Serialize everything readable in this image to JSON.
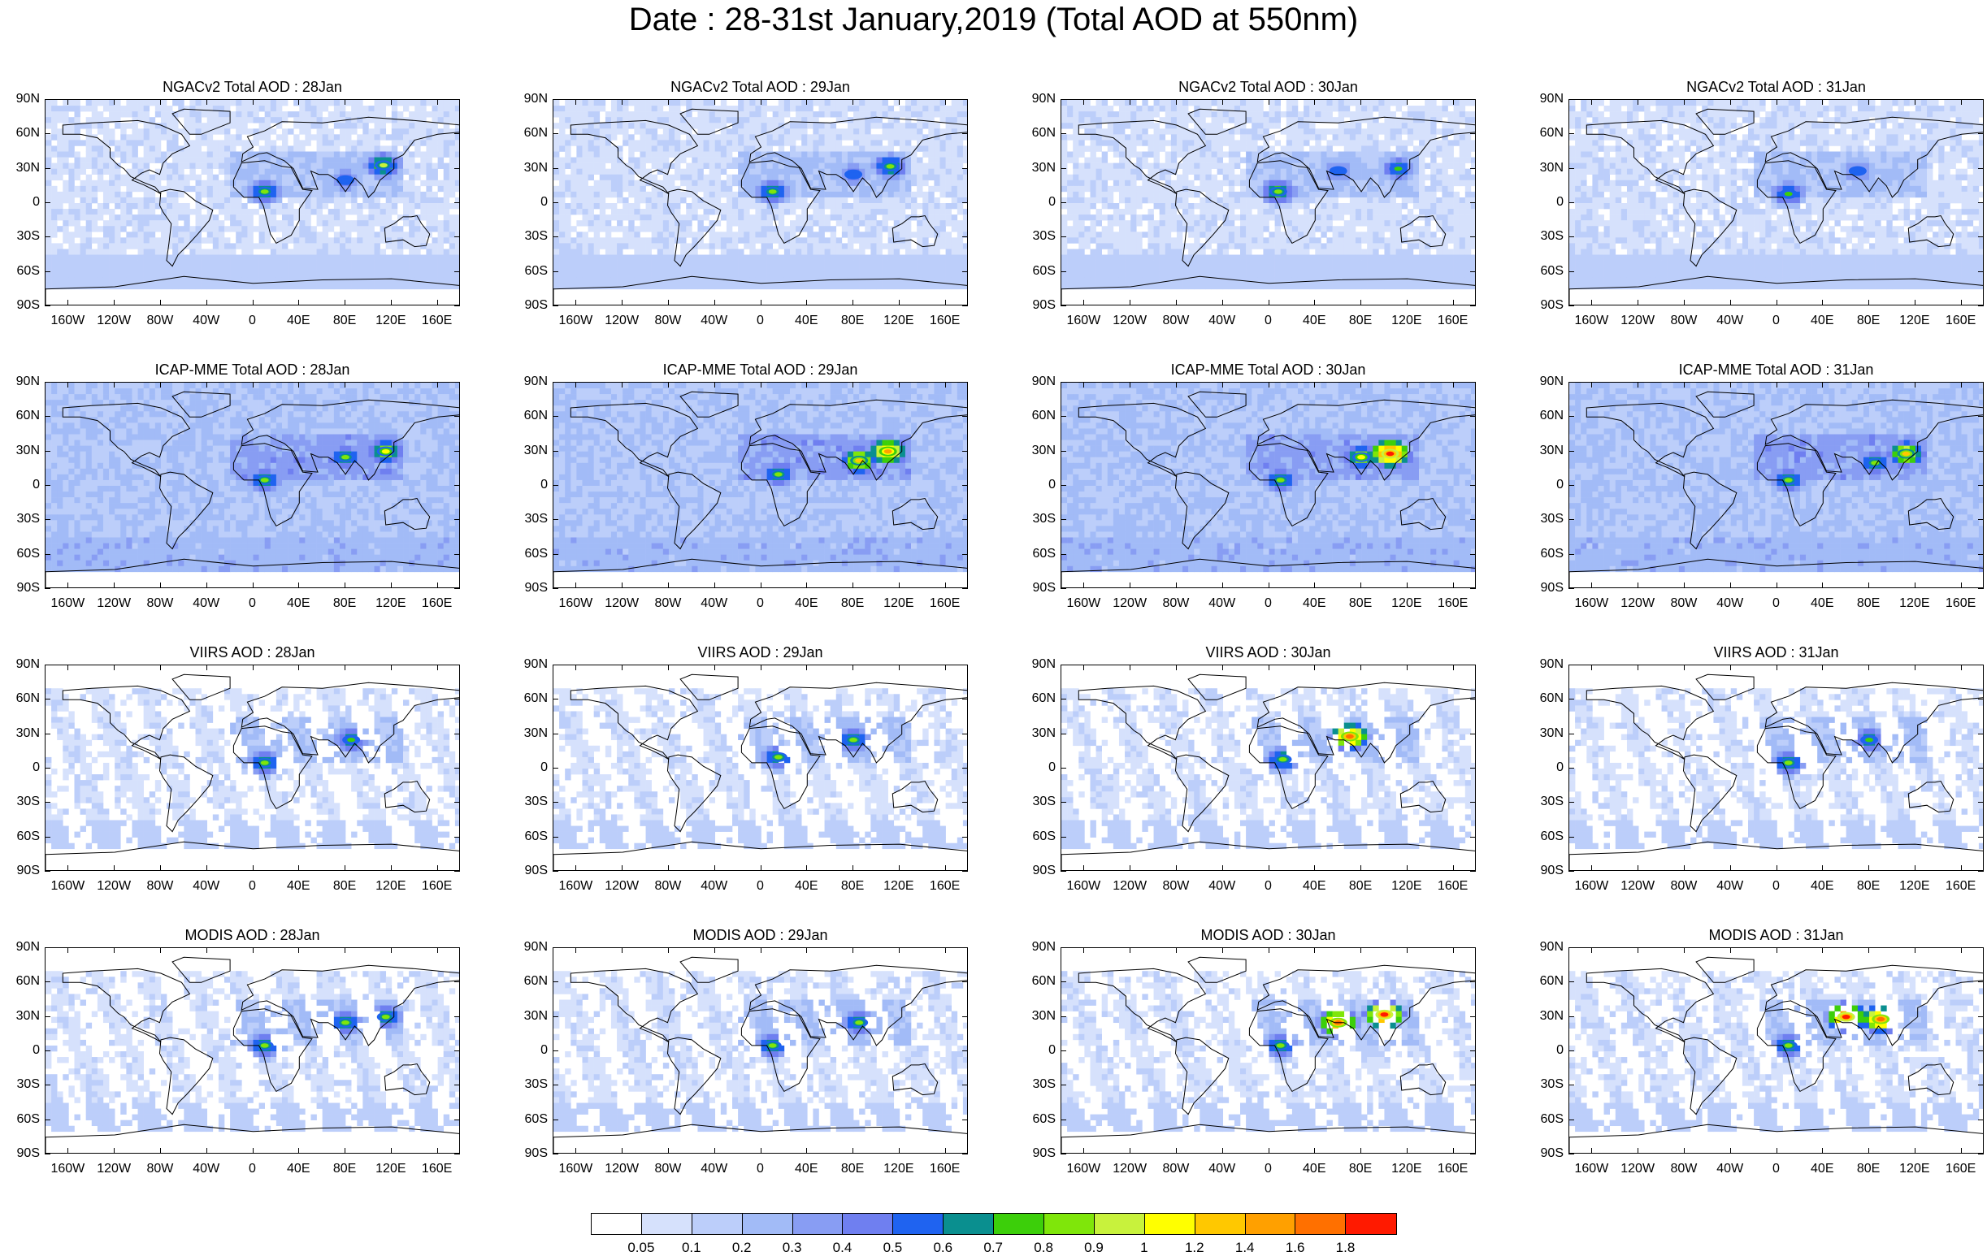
{
  "title": "Date : 28-31st January,2019 (Total AOD at 550nm)",
  "chart_data": {
    "type": "heatmap",
    "title": "Date : 28-31st January,2019 (Total AOD at 550nm)",
    "layout": "4 rows x 4 columns of global map panels",
    "lat_ticks": [
      "90N",
      "60N",
      "30N",
      "0",
      "30S",
      "60S",
      "90S"
    ],
    "lon_ticks": [
      "160W",
      "120W",
      "80W",
      "40W",
      "0",
      "40E",
      "80E",
      "120E",
      "160E"
    ],
    "lat_range": [
      -90,
      90
    ],
    "lon_range": [
      -180,
      180
    ],
    "panels": [
      {
        "title": "NGACv2 Total AOD : 28Jan",
        "product": "NGACv2",
        "date": "28Jan",
        "kind": "model",
        "hotspots": [
          {
            "lat": 10,
            "lon": 10,
            "v": 0.8
          },
          {
            "lat": 33,
            "lon": 113,
            "v": 0.9
          },
          {
            "lat": 20,
            "lon": 80,
            "v": 0.5
          }
        ]
      },
      {
        "title": "NGACv2 Total AOD : 29Jan",
        "product": "NGACv2",
        "date": "29Jan",
        "kind": "model",
        "hotspots": [
          {
            "lat": 10,
            "lon": 10,
            "v": 0.8
          },
          {
            "lat": 32,
            "lon": 112,
            "v": 0.8
          },
          {
            "lat": 25,
            "lon": 80,
            "v": 0.5
          }
        ]
      },
      {
        "title": "NGACv2 Total AOD : 30Jan",
        "product": "NGACv2",
        "date": "30Jan",
        "kind": "model",
        "hotspots": [
          {
            "lat": 10,
            "lon": 8,
            "v": 0.8
          },
          {
            "lat": 30,
            "lon": 112,
            "v": 0.7
          },
          {
            "lat": 28,
            "lon": 60,
            "v": 0.5
          }
        ]
      },
      {
        "title": "NGACv2 Total AOD : 31Jan",
        "product": "NGACv2",
        "date": "31Jan",
        "kind": "model",
        "hotspots": [
          {
            "lat": 8,
            "lon": 10,
            "v": 0.7
          },
          {
            "lat": 28,
            "lon": 70,
            "v": 0.5
          }
        ]
      },
      {
        "title": "ICAP-MME Total AOD : 28Jan",
        "product": "ICAP-MME",
        "date": "28Jan",
        "kind": "model",
        "hotspots": [
          {
            "lat": 5,
            "lon": 10,
            "v": 0.8
          },
          {
            "lat": 30,
            "lon": 115,
            "v": 1.0
          },
          {
            "lat": 25,
            "lon": 80,
            "v": 0.8
          }
        ]
      },
      {
        "title": "ICAP-MME Total AOD : 29Jan",
        "product": "ICAP-MME",
        "date": "29Jan",
        "kind": "model",
        "hotspots": [
          {
            "lat": 30,
            "lon": 110,
            "v": 1.4
          },
          {
            "lat": 22,
            "lon": 85,
            "v": 1.2
          },
          {
            "lat": 10,
            "lon": 15,
            "v": 0.8
          }
        ]
      },
      {
        "title": "ICAP-MME Total AOD : 30Jan",
        "product": "ICAP-MME",
        "date": "30Jan",
        "kind": "model",
        "hotspots": [
          {
            "lat": 28,
            "lon": 105,
            "v": 1.8
          },
          {
            "lat": 25,
            "lon": 80,
            "v": 1.0
          },
          {
            "lat": 5,
            "lon": 10,
            "v": 0.8
          }
        ]
      },
      {
        "title": "ICAP-MME Total AOD : 31Jan",
        "product": "ICAP-MME",
        "date": "31Jan",
        "kind": "model",
        "hotspots": [
          {
            "lat": 28,
            "lon": 112,
            "v": 1.2
          },
          {
            "lat": 5,
            "lon": 10,
            "v": 0.8
          },
          {
            "lat": 20,
            "lon": 85,
            "v": 0.8
          }
        ]
      },
      {
        "title": "VIIRS AOD : 28Jan",
        "product": "VIIRS",
        "date": "28Jan",
        "kind": "satellite",
        "hotspots": [
          {
            "lat": 5,
            "lon": 10,
            "v": 0.8
          },
          {
            "lat": 25,
            "lon": 85,
            "v": 0.7
          }
        ]
      },
      {
        "title": "VIIRS AOD : 29Jan",
        "product": "VIIRS",
        "date": "29Jan",
        "kind": "satellite",
        "hotspots": [
          {
            "lat": 10,
            "lon": 15,
            "v": 0.8
          },
          {
            "lat": 25,
            "lon": 80,
            "v": 0.8
          }
        ]
      },
      {
        "title": "VIIRS AOD : 30Jan",
        "product": "VIIRS",
        "date": "30Jan",
        "kind": "satellite",
        "hotspots": [
          {
            "lat": 28,
            "lon": 70,
            "v": 1.6
          },
          {
            "lat": 8,
            "lon": 12,
            "v": 0.8
          }
        ]
      },
      {
        "title": "VIIRS AOD : 31Jan",
        "product": "VIIRS",
        "date": "31Jan",
        "kind": "satellite",
        "hotspots": [
          {
            "lat": 5,
            "lon": 10,
            "v": 0.8
          },
          {
            "lat": 25,
            "lon": 80,
            "v": 0.7
          }
        ]
      },
      {
        "title": "MODIS AOD : 28Jan",
        "product": "MODIS",
        "date": "28Jan",
        "kind": "satellite",
        "hotspots": [
          {
            "lat": 25,
            "lon": 80,
            "v": 0.8
          },
          {
            "lat": 5,
            "lon": 10,
            "v": 0.8
          },
          {
            "lat": 30,
            "lon": 115,
            "v": 0.8
          }
        ]
      },
      {
        "title": "MODIS AOD : 29Jan",
        "product": "MODIS",
        "date": "29Jan",
        "kind": "satellite",
        "hotspots": [
          {
            "lat": 5,
            "lon": 10,
            "v": 0.8
          },
          {
            "lat": 25,
            "lon": 85,
            "v": 0.8
          }
        ]
      },
      {
        "title": "MODIS AOD : 30Jan",
        "product": "MODIS",
        "date": "30Jan",
        "kind": "satellite",
        "hotspots": [
          {
            "lat": 32,
            "lon": 100,
            "v": 1.8
          },
          {
            "lat": 25,
            "lon": 60,
            "v": 1.6
          },
          {
            "lat": 5,
            "lon": 10,
            "v": 0.8
          }
        ]
      },
      {
        "title": "MODIS AOD : 31Jan",
        "product": "MODIS",
        "date": "31Jan",
        "kind": "satellite",
        "hotspots": [
          {
            "lat": 30,
            "lon": 60,
            "v": 1.8
          },
          {
            "lat": 28,
            "lon": 90,
            "v": 1.6
          },
          {
            "lat": 5,
            "lon": 10,
            "v": 0.8
          }
        ]
      }
    ],
    "colorbar": {
      "labels": [
        "0.05",
        "0.1",
        "0.2",
        "0.3",
        "0.4",
        "0.5",
        "0.6",
        "0.7",
        "0.8",
        "0.9",
        "1",
        "1.2",
        "1.4",
        "1.6",
        "1.8"
      ],
      "colors": [
        "#ffffff",
        "#d6e1fc",
        "#bccefa",
        "#a2bbf7",
        "#889df3",
        "#6f7ff0",
        "#1f63f0",
        "#0a8f8f",
        "#3ccf0a",
        "#7fe60a",
        "#c8f23c",
        "#ffff00",
        "#ffc800",
        "#ffa000",
        "#ff7000",
        "#ff1a00"
      ]
    }
  }
}
